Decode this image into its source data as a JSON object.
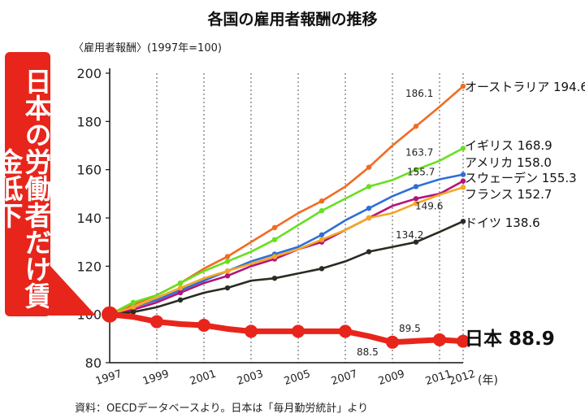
{
  "callout_text": "日本の労働者だけ賃金低下",
  "chart_data": {
    "type": "line",
    "title": "各国の雇用者報酬の推移",
    "ylabel": "〈雇用者報酬〉(1997年=100)",
    "xlabel": "(年)",
    "source": "資料：OECDデータベースより。日本は「毎月勤労統計」より",
    "ylim": [
      80,
      200
    ],
    "yticks": [
      80,
      100,
      120,
      140,
      160,
      180,
      200
    ],
    "x": [
      1997,
      1998,
      1999,
      2000,
      2001,
      2002,
      2003,
      2004,
      2005,
      2006,
      2007,
      2008,
      2009,
      2010,
      2011,
      2012
    ],
    "xticks": [
      1997,
      1999,
      2001,
      2003,
      2005,
      2007,
      2009,
      2011,
      2012
    ],
    "grid": "vertical-dotted",
    "series": [
      {
        "name": "オーストラリア",
        "end_label": "オーストラリア 194.6",
        "color": "#f26b21",
        "values": [
          100,
          104,
          108,
          113,
          119,
          124,
          130,
          136,
          142,
          147,
          153,
          161,
          170,
          178,
          186.1,
          194.6
        ]
      },
      {
        "name": "イギリス",
        "end_label": "イギリス 168.9",
        "color": "#66e020",
        "values": [
          100,
          105,
          108,
          113,
          118,
          122,
          126,
          131,
          137,
          143,
          148,
          153,
          155.7,
          160,
          163.7,
          168.9
        ]
      },
      {
        "name": "アメリカ",
        "end_label": "アメリカ 158.0",
        "color": "#2f6fd6",
        "values": [
          100,
          103,
          106,
          110,
          114,
          118,
          122,
          125,
          128,
          133,
          139,
          144,
          149,
          153,
          156,
          158.0
        ]
      },
      {
        "name": "スウェーデン",
        "end_label": "スウェーデン 155.3",
        "color": "#b4127a",
        "values": [
          100,
          102,
          105,
          109,
          113,
          116,
          120,
          123,
          127,
          130,
          135,
          140,
          145,
          148,
          150,
          155.3
        ]
      },
      {
        "name": "フランス",
        "end_label": "フランス 152.7",
        "color": "#f5a623",
        "values": [
          100,
          103,
          107,
          111,
          115,
          118,
          121,
          124,
          127,
          131,
          135,
          140,
          142,
          146,
          149.6,
          152.7
        ]
      },
      {
        "name": "ドイツ",
        "end_label": "ドイツ 138.6",
        "color": "#2b2b22",
        "values": [
          100,
          101,
          103,
          106,
          109,
          111,
          114,
          115,
          117,
          119,
          122,
          126,
          128,
          130,
          134.2,
          138.6
        ]
      },
      {
        "name": "日本",
        "end_label": "日本 88.9",
        "color": "#e8251b",
        "values": [
          100,
          99,
          97,
          96,
          95.5,
          94,
          93,
          93,
          93,
          93,
          93,
          91,
          88.5,
          89,
          89.5,
          88.9
        ]
      }
    ],
    "annotations": [
      {
        "series": "オーストラリア",
        "x": 2011,
        "text": "186.1"
      },
      {
        "series": "イギリス",
        "x": 2011,
        "text": "163.7"
      },
      {
        "series": "イギリス",
        "x": 2009,
        "text": "155.7"
      },
      {
        "series": "フランス",
        "x": 2011,
        "text": "149.6"
      },
      {
        "series": "ドイツ",
        "x": 2011,
        "text": "134.2"
      },
      {
        "series": "日本",
        "x": 2011,
        "text": "89.5"
      },
      {
        "series": "日本",
        "x": 2009,
        "text": "88.5"
      }
    ]
  }
}
